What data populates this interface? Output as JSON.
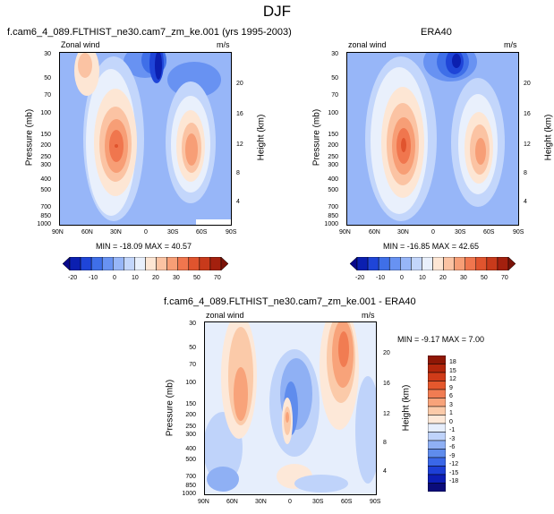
{
  "figure": {
    "title": "DJF"
  },
  "chart_data": [
    {
      "type": "heatmap",
      "title": "f.cam6_4_089.FLTHIST_ne30.cam7_zm_ke.001 (yrs 1995-2003)",
      "left_label": "Zonal wind",
      "right_label": "m/s",
      "xlabel": "",
      "ylabel": "Pressure (mb)",
      "y2label": "Height (km)",
      "x_ticks": [
        "90N",
        "60N",
        "30N",
        "0",
        "30S",
        "60S",
        "90S"
      ],
      "y_ticks": [
        "30",
        "50",
        "70",
        "100",
        "150",
        "200",
        "250",
        "300",
        "400",
        "500",
        "700",
        "850",
        "1000"
      ],
      "y2_ticks": [
        "20",
        "16",
        "12",
        "8",
        "4"
      ],
      "stats": "MIN = -18.09   MAX = 40.57",
      "colorbar_labels": [
        "-20",
        "-10",
        "0",
        "10",
        "20",
        "30",
        "50",
        "70"
      ],
      "jets": [
        {
          "center_lat": 30,
          "center_pressure": 200,
          "max": 40.57
        },
        {
          "center_lat": -45,
          "center_pressure": 200,
          "max": 30
        }
      ],
      "easterly_min": -18.09
    },
    {
      "type": "heatmap",
      "title": "ERA40",
      "left_label": "zonal wind",
      "right_label": "m/s",
      "xlabel": "",
      "ylabel": "Pressure (mb)",
      "y2label": "Height (km)",
      "x_ticks": [
        "90N",
        "60N",
        "30N",
        "0",
        "30S",
        "60S",
        "90S"
      ],
      "y_ticks": [
        "30",
        "50",
        "70",
        "100",
        "150",
        "200",
        "250",
        "300",
        "400",
        "500",
        "700",
        "850",
        "1000"
      ],
      "y2_ticks": [
        "20",
        "16",
        "12",
        "8",
        "4"
      ],
      "stats": "MIN = -16.85   MAX = 42.65",
      "colorbar_labels": [
        "-20",
        "-10",
        "0",
        "10",
        "20",
        "30",
        "50",
        "70"
      ],
      "jets": [
        {
          "center_lat": 30,
          "center_pressure": 200,
          "max": 42.65
        },
        {
          "center_lat": -45,
          "center_pressure": 200,
          "max": 30
        }
      ],
      "easterly_min": -16.85
    },
    {
      "type": "heatmap",
      "title": "f.cam6_4_089.FLTHIST_ne30.cam7_zm_ke.001 - ERA40",
      "left_label": "zonal wind",
      "right_label": "m/s",
      "xlabel": "",
      "ylabel": "Pressure (mb)",
      "y2label": "Height (km)",
      "x_ticks": [
        "90N",
        "60N",
        "30N",
        "0",
        "30S",
        "60S",
        "90S"
      ],
      "y_ticks": [
        "30",
        "50",
        "70",
        "100",
        "150",
        "200",
        "250",
        "300",
        "400",
        "500",
        "700",
        "850",
        "1000"
      ],
      "y2_ticks": [
        "20",
        "16",
        "12",
        "8",
        "4"
      ],
      "stats": "MIN = -9.17   MAX =   7.00",
      "colorbar_labels": [
        "18",
        "15",
        "12",
        "9",
        "6",
        "3",
        "1",
        "0",
        "-1",
        "-3",
        "-6",
        "-9",
        "-12",
        "-15",
        "-18"
      ],
      "diff_min": -9.17,
      "diff_max": 7.0
    }
  ],
  "colors": {
    "zonal_scale": [
      "#08088a",
      "#0b1fb0",
      "#1f45d8",
      "#3f6fe8",
      "#6892f2",
      "#97b6f8",
      "#c3d6fb",
      "#e9f0fc",
      "#fde6d4",
      "#fbc3a3",
      "#f79e76",
      "#f0764e",
      "#e0542e",
      "#c83a1b",
      "#a3200e",
      "#7a1208"
    ],
    "diff_scale": [
      "#0b0c7a",
      "#0d1eb5",
      "#1d3fd6",
      "#3a67e8",
      "#5f8ced",
      "#8fb0f4",
      "#bfd3fa",
      "#e6eefc",
      "#fde8d8",
      "#fbcaa9",
      "#f8a37a",
      "#f17c52",
      "#e5582d",
      "#d03b19",
      "#b3260c",
      "#8f1706"
    ]
  }
}
